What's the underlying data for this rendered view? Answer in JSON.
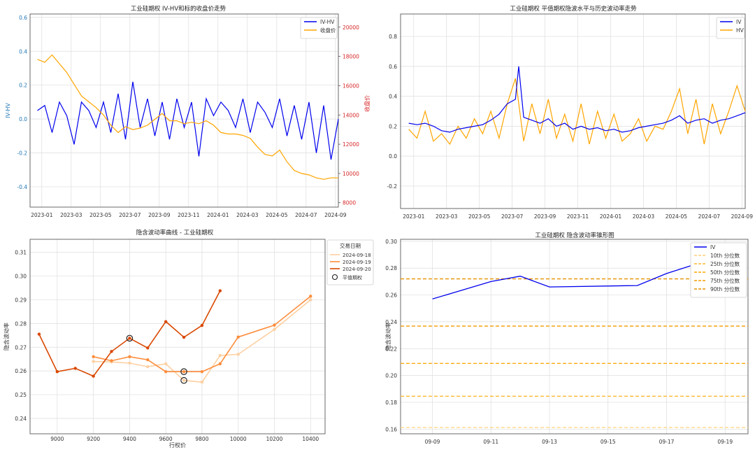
{
  "chart_data": [
    {
      "type": "line",
      "title": "工业硅期权 IV-HV和标的收盘价走势",
      "ylabel": "IV-HV",
      "y2label": "收盘价",
      "ylim": [
        -0.52,
        0.62
      ],
      "y2lim": [
        7700,
        20900
      ],
      "yticks": [
        "-0.4",
        "-0.2",
        "0.0",
        "0.2",
        "0.4",
        "0.6"
      ],
      "yticks_values": [
        -0.4,
        -0.2,
        0.0,
        0.2,
        0.4,
        0.6
      ],
      "y2ticks": [
        "8000",
        "10000",
        "12000",
        "14000",
        "16000",
        "18000",
        "20000"
      ],
      "y2ticks_values": [
        8000,
        10000,
        12000,
        14000,
        16000,
        18000,
        20000
      ],
      "xticks": [
        "2023-01",
        "2023-03",
        "2023-05",
        "2023-07",
        "2023-09",
        "2023-11",
        "2024-01",
        "2024-03",
        "2024-05",
        "2024-07",
        "2024-09"
      ],
      "xlim": [
        0,
        21
      ],
      "xticks_pos": [
        0.8,
        2.8,
        4.8,
        6.8,
        8.8,
        10.8,
        12.8,
        14.8,
        16.8,
        18.8,
        20.8
      ],
      "legend": "top-right",
      "colors": {
        "axis_left": "#1f77b4",
        "axis_right": "#d62728"
      },
      "series": [
        {
          "name": "IV-HV",
          "color": "#0000ee",
          "axis": "left",
          "x": [
            0.5,
            1.0,
            1.5,
            2.0,
            2.5,
            3.0,
            3.5,
            4.0,
            4.5,
            5.0,
            5.5,
            6.0,
            6.5,
            7.0,
            7.5,
            8.0,
            8.5,
            9.0,
            9.5,
            10.0,
            10.5,
            11.0,
            11.5,
            12.0,
            12.5,
            13.0,
            13.5,
            14.0,
            14.5,
            15.0,
            15.5,
            16.0,
            16.5,
            17.0,
            17.5,
            18.0,
            18.5,
            19.0,
            19.5,
            20.0,
            20.5,
            21.0
          ],
          "y": [
            0.05,
            0.08,
            -0.08,
            0.1,
            0.02,
            -0.15,
            0.1,
            0.05,
            -0.05,
            0.1,
            -0.08,
            0.15,
            -0.12,
            0.22,
            -0.05,
            0.12,
            -0.1,
            0.1,
            -0.12,
            0.12,
            -0.05,
            0.1,
            -0.22,
            0.12,
            0.02,
            0.1,
            0.05,
            -0.05,
            0.12,
            -0.08,
            0.1,
            0.04,
            -0.05,
            0.12,
            -0.1,
            0.08,
            -0.12,
            0.1,
            -0.2,
            0.08,
            -0.24,
            0.0
          ]
        },
        {
          "name": "收盘价",
          "color": "#ffa500",
          "axis": "right",
          "x": [
            0.5,
            1.0,
            1.5,
            2.0,
            2.5,
            3.0,
            3.5,
            4.0,
            4.5,
            5.0,
            5.5,
            6.0,
            6.5,
            7.0,
            7.5,
            8.0,
            8.5,
            9.0,
            9.5,
            10.0,
            10.5,
            11.0,
            11.5,
            12.0,
            12.5,
            13.0,
            13.5,
            14.0,
            14.5,
            15.0,
            15.5,
            16.0,
            16.5,
            17.0,
            17.5,
            18.0,
            18.5,
            19.0,
            19.5,
            20.0,
            20.5,
            21.0
          ],
          "y": [
            17800,
            17600,
            18100,
            17500,
            16900,
            16100,
            15300,
            14900,
            14500,
            14000,
            13300,
            12800,
            13200,
            13000,
            13100,
            13300,
            13700,
            14100,
            13600,
            13600,
            13400,
            13500,
            13400,
            13600,
            13300,
            12800,
            12700,
            12700,
            12600,
            12400,
            11800,
            11300,
            11200,
            11600,
            10800,
            10200,
            10000,
            9900,
            9700,
            9600,
            9700,
            9700
          ]
        }
      ]
    },
    {
      "type": "line",
      "title": "工业硅期权 平值期权隐波水平与历史波动率走势",
      "ylim": [
        -0.35,
        0.95
      ],
      "yticks": [
        "-0.2",
        "0.0",
        "0.2",
        "0.4",
        "0.6",
        "0.8"
      ],
      "yticks_values": [
        -0.2,
        0.0,
        0.2,
        0.4,
        0.6,
        0.8
      ],
      "xticks": [
        "2023-01",
        "2023-03",
        "2023-05",
        "2023-07",
        "2023-09",
        "2023-11",
        "2024-01",
        "2024-03",
        "2024-05",
        "2024-07",
        "2024-09"
      ],
      "xlim": [
        0,
        21
      ],
      "xticks_pos": [
        0.8,
        2.8,
        4.8,
        6.8,
        8.8,
        10.8,
        12.8,
        14.8,
        16.8,
        18.8,
        20.8
      ],
      "legend": "top-right",
      "series": [
        {
          "name": "IV",
          "color": "#0000ee",
          "x": [
            0.5,
            1.0,
            1.5,
            2.0,
            2.5,
            3.0,
            3.5,
            4.0,
            4.5,
            5.0,
            5.5,
            6.0,
            6.5,
            7.0,
            7.2,
            7.5,
            8.0,
            8.5,
            9.0,
            9.5,
            10.0,
            10.5,
            11.0,
            11.5,
            12.0,
            12.5,
            13.0,
            13.5,
            14.0,
            14.5,
            15.0,
            15.5,
            16.0,
            16.5,
            17.0,
            17.5,
            18.0,
            18.5,
            19.0,
            19.5,
            20.0,
            20.5,
            21.0
          ],
          "y": [
            0.22,
            0.21,
            0.22,
            0.2,
            0.17,
            0.16,
            0.18,
            0.19,
            0.2,
            0.21,
            0.24,
            0.28,
            0.35,
            0.38,
            0.6,
            0.26,
            0.24,
            0.22,
            0.25,
            0.2,
            0.22,
            0.18,
            0.2,
            0.18,
            0.19,
            0.17,
            0.18,
            0.16,
            0.17,
            0.19,
            0.2,
            0.21,
            0.22,
            0.24,
            0.27,
            0.22,
            0.24,
            0.25,
            0.22,
            0.24,
            0.25,
            0.27,
            0.29
          ]
        },
        {
          "name": "HV",
          "color": "#ffa500",
          "x": [
            0.5,
            1.0,
            1.5,
            2.0,
            2.5,
            3.0,
            3.5,
            4.0,
            4.5,
            5.0,
            5.5,
            6.0,
            6.5,
            7.0,
            7.5,
            8.0,
            8.5,
            9.0,
            9.5,
            10.0,
            10.5,
            11.0,
            11.5,
            12.0,
            12.5,
            13.0,
            13.5,
            14.0,
            14.5,
            15.0,
            15.5,
            16.0,
            16.5,
            17.0,
            17.5,
            18.0,
            18.5,
            19.0,
            19.5,
            20.0,
            20.5,
            21.0
          ],
          "y": [
            0.18,
            0.12,
            0.3,
            0.1,
            0.15,
            0.08,
            0.2,
            0.12,
            0.25,
            0.15,
            0.3,
            0.12,
            0.35,
            0.52,
            0.1,
            0.35,
            0.15,
            0.38,
            0.12,
            0.28,
            0.1,
            0.35,
            0.08,
            0.3,
            0.12,
            0.28,
            0.1,
            0.15,
            0.25,
            0.1,
            0.2,
            0.18,
            0.3,
            0.45,
            0.15,
            0.38,
            0.08,
            0.35,
            0.15,
            0.3,
            0.47,
            0.3
          ]
        }
      ]
    },
    {
      "type": "line",
      "title": "隐含波动率曲线 - 工业硅期权",
      "xlabel": "行权价",
      "ylabel": "隐含波动率",
      "xlim": [
        8850,
        10480
      ],
      "ylim": [
        0.2335,
        0.3155
      ],
      "xticks": [
        "9000",
        "9200",
        "9400",
        "9600",
        "9800",
        "10000",
        "10200",
        "10400"
      ],
      "xticks_values": [
        9000,
        9200,
        9400,
        9600,
        9800,
        10000,
        10200,
        10400
      ],
      "yticks": [
        "0.24",
        "0.25",
        "0.26",
        "0.27",
        "0.28",
        "0.29",
        "0.30",
        "0.31"
      ],
      "yticks_values": [
        0.24,
        0.25,
        0.26,
        0.27,
        0.28,
        0.29,
        0.3,
        0.31
      ],
      "legend_title": "交易日期",
      "legend": "outside-right",
      "atm_label": "平值期权",
      "series": [
        {
          "name": "2024-09-18",
          "color": "#fdd0a2",
          "x": [
            9200,
            9300,
            9400,
            9500,
            9600,
            9700,
            9800,
            9900,
            10000,
            10200,
            10400
          ],
          "y": [
            0.264,
            0.2638,
            0.2633,
            0.2618,
            0.263,
            0.256,
            0.2553,
            0.2665,
            0.267,
            0.2775,
            0.29
          ],
          "atm": [
            9700,
            0.256
          ]
        },
        {
          "name": "2024-09-19",
          "color": "#fd8d3c",
          "x": [
            9200,
            9300,
            9400,
            9500,
            9600,
            9700,
            9800,
            9900,
            10000,
            10200,
            10400
          ],
          "y": [
            0.266,
            0.2643,
            0.266,
            0.2647,
            0.2597,
            0.2597,
            0.2597,
            0.263,
            0.2743,
            0.2793,
            0.2915
          ],
          "atm": [
            9700,
            0.2597
          ]
        },
        {
          "name": "2024-09-20",
          "color": "#d94801",
          "x": [
            8900,
            9000,
            9100,
            9200,
            9300,
            9400,
            9500,
            9600,
            9700,
            9800,
            9900
          ],
          "y": [
            0.2755,
            0.2597,
            0.2611,
            0.2578,
            0.2682,
            0.2738,
            0.2697,
            0.2808,
            0.2742,
            0.2792,
            0.2938
          ],
          "atm": [
            9400,
            0.2738
          ]
        }
      ]
    },
    {
      "type": "line",
      "title": "工业硅期权 隐含波动率锥形图",
      "ylabel": "隐含波动率",
      "xlim": [
        -0.3,
        9.35
      ],
      "ylim": [
        0.1565,
        0.3015
      ],
      "xticks": [
        "09-09",
        "09-11",
        "09-13",
        "09-15",
        "09-17",
        "09-19"
      ],
      "xticks_pos": [
        0,
        2,
        4,
        6,
        8,
        10
      ],
      "yticks": [
        "0.16",
        "0.18",
        "0.20",
        "0.22",
        "0.24",
        "0.26",
        "0.28",
        "0.30"
      ],
      "yticks_values": [
        0.16,
        0.18,
        0.2,
        0.22,
        0.24,
        0.26,
        0.28,
        0.3
      ],
      "legend": "top-right",
      "series": [
        {
          "name": "IV",
          "color": "#0000ee",
          "x": [
            0,
            2,
            3,
            4,
            7,
            8,
            9
          ],
          "y": [
            0.257,
            0.27,
            0.274,
            0.266,
            0.267,
            0.276,
            0.283
          ]
        }
      ],
      "percentiles": [
        {
          "name": "10th 分位数",
          "value": 0.1612,
          "color": "#ffd27a"
        },
        {
          "name": "25th 分位数",
          "value": 0.1845,
          "color": "#ffb833"
        },
        {
          "name": "50th 分位数",
          "value": 0.209,
          "color": "#ffa500"
        },
        {
          "name": "75th 分位数",
          "value": 0.2368,
          "color": "#f59a00"
        },
        {
          "name": "90th 分位数",
          "value": 0.272,
          "color": "#e69100"
        }
      ]
    }
  ]
}
